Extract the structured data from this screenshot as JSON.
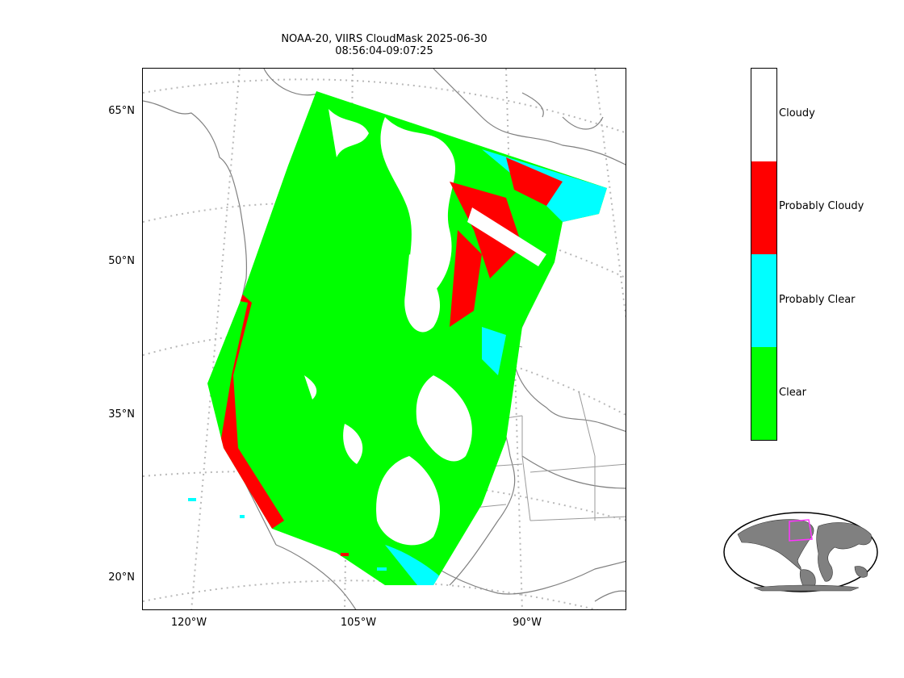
{
  "title": {
    "line1": "NOAA-20, VIIRS CloudMask 2025-06-30",
    "line2": "08:56:04-09:07:25"
  },
  "map": {
    "lat_labels": [
      "65°N",
      "50°N",
      "35°N",
      "20°N"
    ],
    "lon_labels": [
      "120°W",
      "105°W",
      "90°W"
    ]
  },
  "colorbar": {
    "categories": [
      {
        "label": "Cloudy",
        "color": "#ffffff"
      },
      {
        "label": "Probably Cloudy",
        "color": "#ff0000"
      },
      {
        "label": "Probably Clear",
        "color": "#00ffff"
      },
      {
        "label": "Clear",
        "color": "#00ff00"
      }
    ]
  },
  "inset": {
    "outline_color": "#ff33ff",
    "land_color": "#808080"
  }
}
